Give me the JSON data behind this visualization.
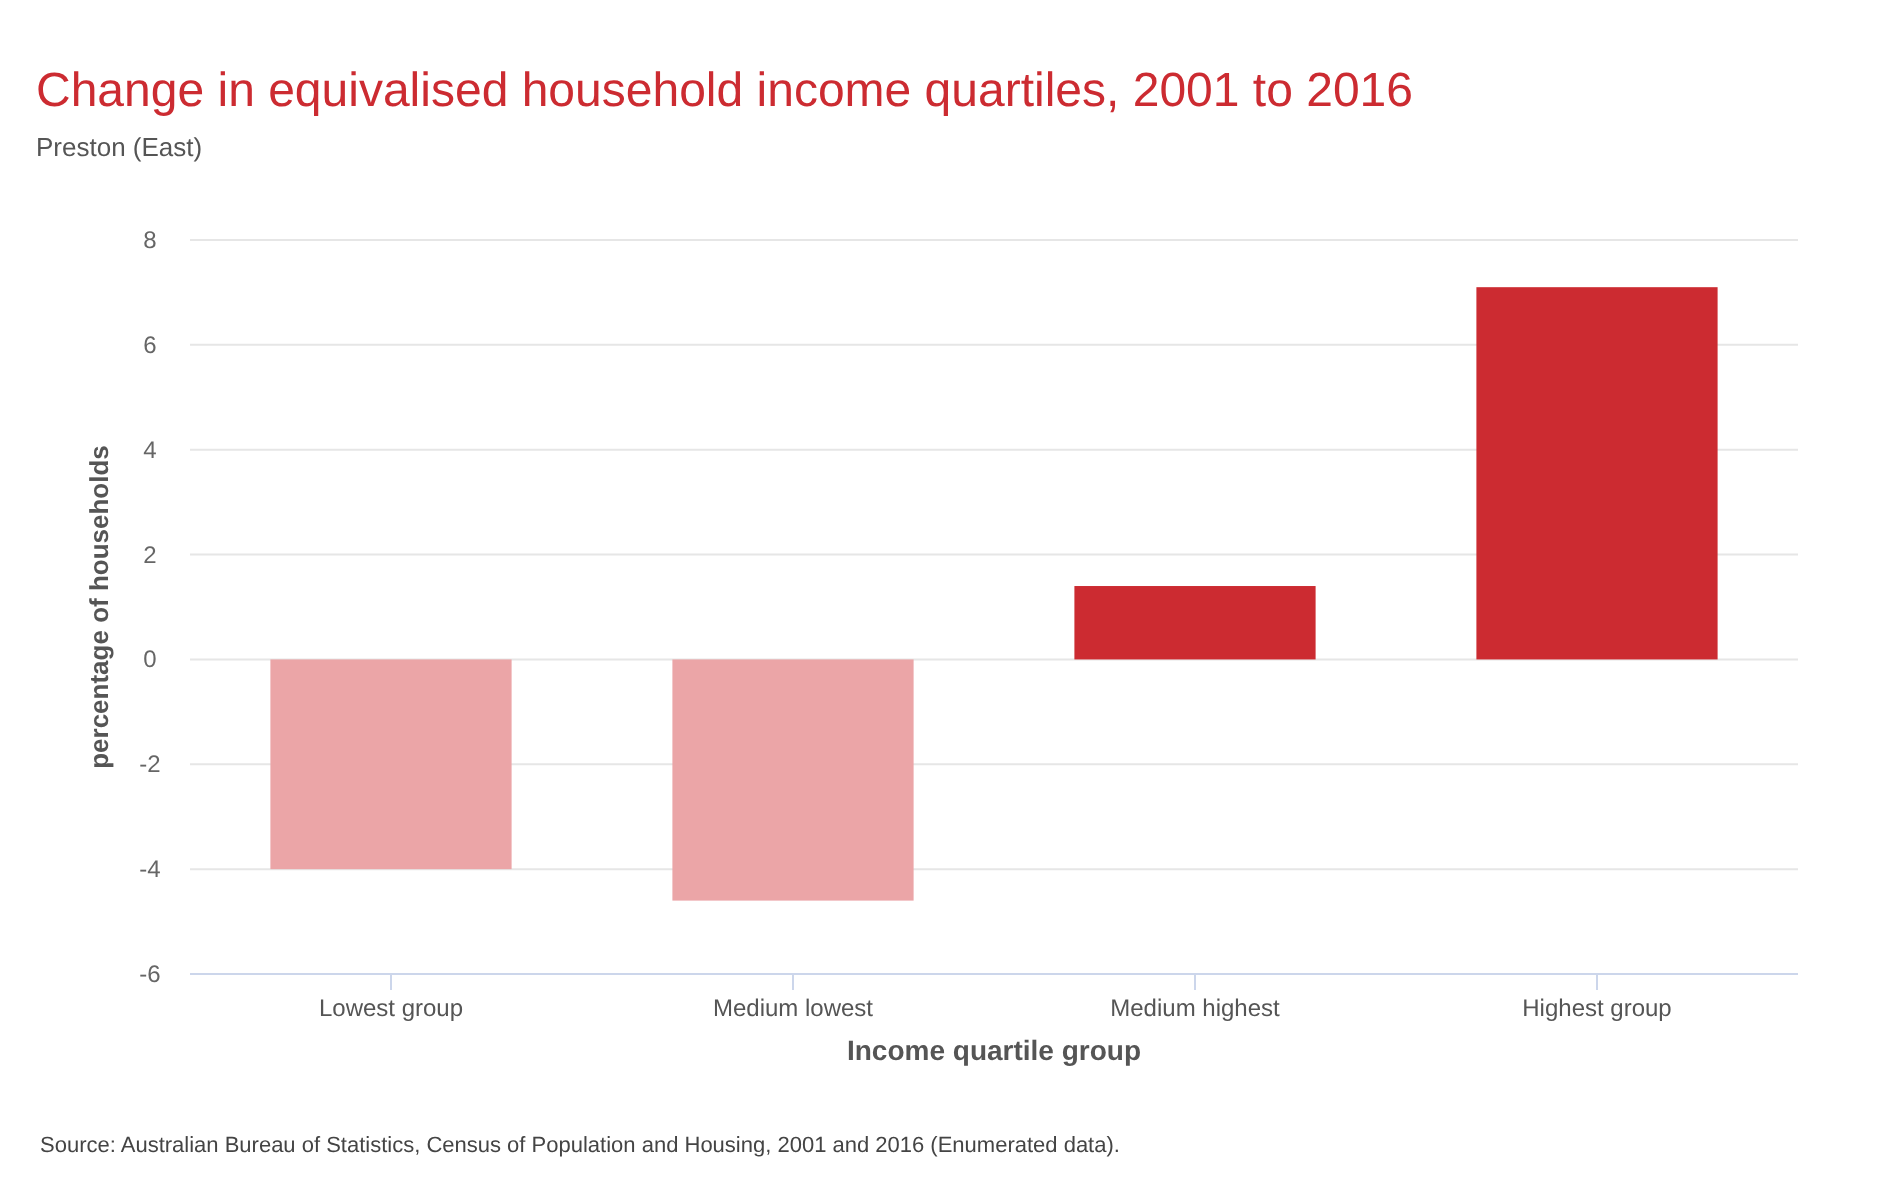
{
  "chart_data": {
    "type": "bar",
    "title": "Change in equivalised household income quartiles, 2001 to 2016",
    "subtitle": "Preston (East)",
    "xlabel": "Income quartile group",
    "ylabel": "percentage of households",
    "categories": [
      "Lowest group",
      "Medium lowest",
      "Medium highest",
      "Highest group"
    ],
    "values": [
      -4.0,
      -4.6,
      1.4,
      7.1
    ],
    "colors": [
      "#eba5a7",
      "#eba5a7",
      "#cc2b31",
      "#cc2b31"
    ],
    "ylim": [
      -6,
      8
    ],
    "yticks": [
      -6,
      -4,
      -2,
      0,
      2,
      4,
      6,
      8
    ],
    "grid": "y",
    "annotations": [
      "Source: Australian Bureau of Statistics, Census of Population and Housing, 2001 and 2016 (Enumerated data)."
    ]
  }
}
